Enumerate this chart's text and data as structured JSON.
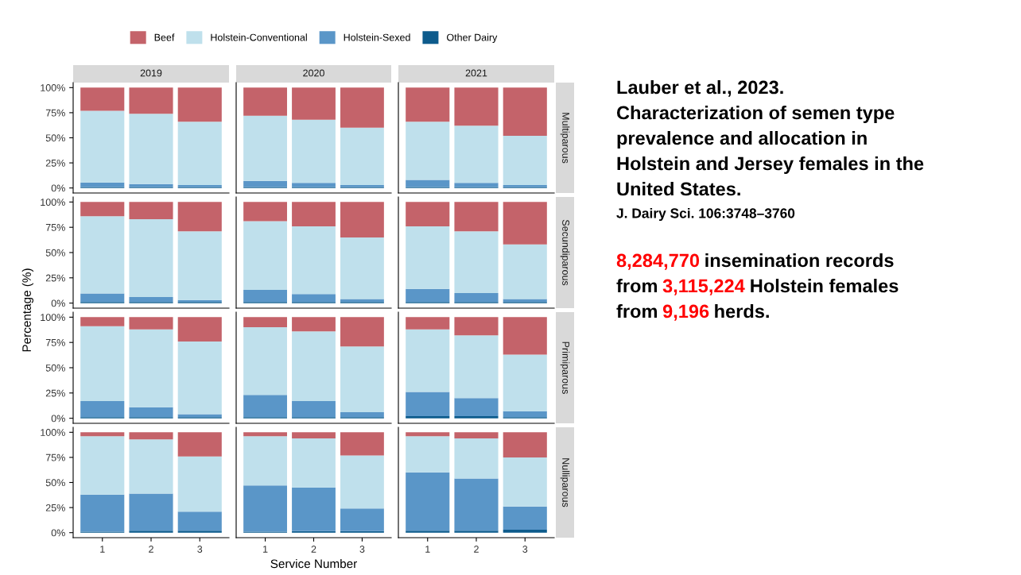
{
  "chart_data": [
    {
      "type": "bar",
      "stacked": true,
      "title": "2019",
      "legend": "top",
      "tick_labels": "y",
      "categories": [
        "1",
        "2",
        "3"
      ],
      "ylim": [
        -5,
        105
      ],
      "yticks": [
        {
          "value": 0,
          "label": "0%"
        },
        {
          "value": 25,
          "label": "25%"
        },
        {
          "value": 50,
          "label": "50%"
        },
        {
          "value": 75,
          "label": "75%"
        },
        {
          "value": 100,
          "label": "100%"
        }
      ],
      "series": [
        {
          "name": "Other Dairy",
          "color": "#0d5b8c",
          "values": [
            1,
            1,
            1
          ]
        },
        {
          "name": "Holstein-Sexed",
          "color": "#5a96c8",
          "values": [
            4.5,
            3,
            2
          ]
        },
        {
          "name": "Holstein-Conventional",
          "color": "#bfe0ec",
          "values": [
            71.5,
            70,
            63
          ]
        },
        {
          "name": "Beef",
          "color": "#c4636a",
          "values": [
            23,
            26,
            34
          ]
        }
      ]
    },
    {
      "type": "bar",
      "stacked": true,
      "title": "2020",
      "tick_labels": false,
      "categories": [
        "1",
        "2",
        "3"
      ],
      "ylim": [
        -5,
        105
      ],
      "series": [
        {
          "color": "#0d5b8c",
          "values": [
            1,
            1,
            1
          ]
        },
        {
          "color": "#5a96c8",
          "values": [
            6,
            4,
            2
          ]
        },
        {
          "color": "#bfe0ec",
          "values": [
            65,
            63,
            57
          ]
        },
        {
          "color": "#c4636a",
          "values": [
            28,
            32,
            40
          ]
        }
      ]
    },
    {
      "type": "bar",
      "stacked": true,
      "title": "2021",
      "annotations": [
        "Multiparous"
      ],
      "tick_labels": false,
      "categories": [
        "1",
        "2",
        "3"
      ],
      "ylim": [
        -5,
        105
      ],
      "series": [
        {
          "color": "#0d5b8c",
          "values": [
            1,
            1,
            1
          ]
        },
        {
          "color": "#5a96c8",
          "values": [
            7,
            4,
            2
          ]
        },
        {
          "color": "#bfe0ec",
          "values": [
            58,
            57,
            49
          ]
        },
        {
          "color": "#c4636a",
          "values": [
            34,
            38,
            48
          ]
        }
      ]
    },
    {
      "type": "bar",
      "stacked": true,
      "ylabel": "Percentage (%)",
      "tick_labels": "y",
      "categories": [
        "1",
        "2",
        "3"
      ],
      "ylim": [
        -5,
        105
      ],
      "yticks": [
        {
          "value": 0,
          "label": "0%"
        },
        {
          "value": 25,
          "label": "25%"
        },
        {
          "value": 50,
          "label": "50%"
        },
        {
          "value": 75,
          "label": "75%"
        },
        {
          "value": 100,
          "label": "100%"
        }
      ],
      "series": [
        {
          "color": "#0d5b8c",
          "values": [
            1,
            1,
            1
          ]
        },
        {
          "color": "#5a96c8",
          "values": [
            8.5,
            5,
            2
          ]
        },
        {
          "color": "#bfe0ec",
          "values": [
            76.5,
            77,
            68
          ]
        },
        {
          "color": "#c4636a",
          "values": [
            14,
            17,
            29
          ]
        }
      ]
    },
    {
      "type": "bar",
      "stacked": true,
      "tick_labels": false,
      "categories": [
        "1",
        "2",
        "3"
      ],
      "ylim": [
        -5,
        105
      ],
      "series": [
        {
          "color": "#0d5b8c",
          "values": [
            1,
            1,
            1
          ]
        },
        {
          "color": "#5a96c8",
          "values": [
            12,
            8,
            3
          ]
        },
        {
          "color": "#bfe0ec",
          "values": [
            68,
            67,
            61
          ]
        },
        {
          "color": "#c4636a",
          "values": [
            19,
            24,
            35
          ]
        }
      ]
    },
    {
      "type": "bar",
      "stacked": true,
      "annotations": [
        "Secundiparous"
      ],
      "tick_labels": false,
      "categories": [
        "1",
        "2",
        "3"
      ],
      "ylim": [
        -5,
        105
      ],
      "series": [
        {
          "color": "#0d5b8c",
          "values": [
            1,
            1,
            1
          ]
        },
        {
          "color": "#5a96c8",
          "values": [
            13,
            9,
            3
          ]
        },
        {
          "color": "#bfe0ec",
          "values": [
            62,
            61,
            54
          ]
        },
        {
          "color": "#c4636a",
          "values": [
            24,
            29,
            42
          ]
        }
      ]
    },
    {
      "type": "bar",
      "stacked": true,
      "tick_labels": "y",
      "categories": [
        "1",
        "2",
        "3"
      ],
      "ylim": [
        -5,
        105
      ],
      "yticks": [
        {
          "value": 0,
          "label": "0%"
        },
        {
          "value": 25,
          "label": "25%"
        },
        {
          "value": 50,
          "label": "50%"
        },
        {
          "value": 75,
          "label": "75%"
        },
        {
          "value": 100,
          "label": "100%"
        }
      ],
      "series": [
        {
          "color": "#0d5b8c",
          "values": [
            1,
            1,
            1
          ]
        },
        {
          "color": "#5a96c8",
          "values": [
            16,
            10,
            3
          ]
        },
        {
          "color": "#bfe0ec",
          "values": [
            74,
            77,
            72
          ]
        },
        {
          "color": "#c4636a",
          "values": [
            9,
            12,
            24
          ]
        }
      ]
    },
    {
      "type": "bar",
      "stacked": true,
      "tick_labels": false,
      "categories": [
        "1",
        "2",
        "3"
      ],
      "ylim": [
        -5,
        105
      ],
      "series": [
        {
          "color": "#0d5b8c",
          "values": [
            1,
            1,
            1
          ]
        },
        {
          "color": "#5a96c8",
          "values": [
            22,
            16,
            5
          ]
        },
        {
          "color": "#bfe0ec",
          "values": [
            67,
            69,
            65
          ]
        },
        {
          "color": "#c4636a",
          "values": [
            10,
            14,
            29
          ]
        }
      ]
    },
    {
      "type": "bar",
      "stacked": true,
      "annotations": [
        "Primiparous"
      ],
      "tick_labels": false,
      "categories": [
        "1",
        "2",
        "3"
      ],
      "ylim": [
        -5,
        105
      ],
      "series": [
        {
          "color": "#0d5b8c",
          "values": [
            2,
            2,
            1
          ]
        },
        {
          "color": "#5a96c8",
          "values": [
            24,
            18,
            6
          ]
        },
        {
          "color": "#bfe0ec",
          "values": [
            62,
            62,
            56
          ]
        },
        {
          "color": "#c4636a",
          "values": [
            12,
            18,
            37
          ]
        }
      ]
    },
    {
      "type": "bar",
      "stacked": true,
      "categories": [
        "1",
        "2",
        "3"
      ],
      "ylim": [
        -5,
        105
      ],
      "yticks": [
        {
          "value": 0,
          "label": "0%"
        },
        {
          "value": 25,
          "label": "25%"
        },
        {
          "value": 50,
          "label": "50%"
        },
        {
          "value": 75,
          "label": "75%"
        },
        {
          "value": 100,
          "label": "100%"
        }
      ],
      "series": [
        {
          "color": "#0d5b8c",
          "values": [
            1,
            2,
            2
          ]
        },
        {
          "color": "#5a96c8",
          "values": [
            37,
            37,
            19
          ]
        },
        {
          "color": "#bfe0ec",
          "values": [
            58,
            54,
            55
          ]
        },
        {
          "color": "#c4636a",
          "values": [
            4,
            7,
            24
          ]
        }
      ]
    },
    {
      "type": "bar",
      "stacked": true,
      "xlabel": "Service Number",
      "tick_labels": "x",
      "categories": [
        "1",
        "2",
        "3"
      ],
      "ylim": [
        -5,
        105
      ],
      "series": [
        {
          "color": "#0d5b8c",
          "values": [
            1,
            1.5,
            1.5
          ]
        },
        {
          "color": "#5a96c8",
          "values": [
            46,
            43.5,
            22.5
          ]
        },
        {
          "color": "#bfe0ec",
          "values": [
            49,
            49,
            53
          ]
        },
        {
          "color": "#c4636a",
          "values": [
            4,
            6,
            23
          ]
        }
      ]
    },
    {
      "type": "bar",
      "stacked": true,
      "annotations": [
        "Nulliparous"
      ],
      "tick_labels": "x",
      "categories": [
        "1",
        "2",
        "3"
      ],
      "ylim": [
        -5,
        105
      ],
      "series": [
        {
          "color": "#0d5b8c",
          "values": [
            2,
            2,
            3
          ]
        },
        {
          "color": "#5a96c8",
          "values": [
            58,
            52,
            23
          ]
        },
        {
          "color": "#bfe0ec",
          "values": [
            36,
            40,
            49
          ]
        },
        {
          "color": "#c4636a",
          "values": [
            4,
            6,
            25
          ]
        }
      ]
    },
    {
      "type": "other",
      "annotations": [
        "Lauber et al., 2023.",
        "Characterization of semen type",
        "prevalence and allocation in",
        "Holstein and Jersey females in the",
        "United States.",
        "J. Dairy Sci. 106:3748–3760",
        "8,284,770",
        "insemination records",
        "from",
        "3,115,224",
        "Holstein females",
        "from",
        "9,196",
        "herds."
      ],
      "colors": [
        "#000000",
        "#000000",
        "#000000",
        "#000000",
        "#000000",
        "#000000",
        "#ff0000",
        "#000000",
        "#000000",
        "#ff0000",
        "#000000",
        "#000000",
        "#ff0000",
        "#000000"
      ]
    }
  ]
}
